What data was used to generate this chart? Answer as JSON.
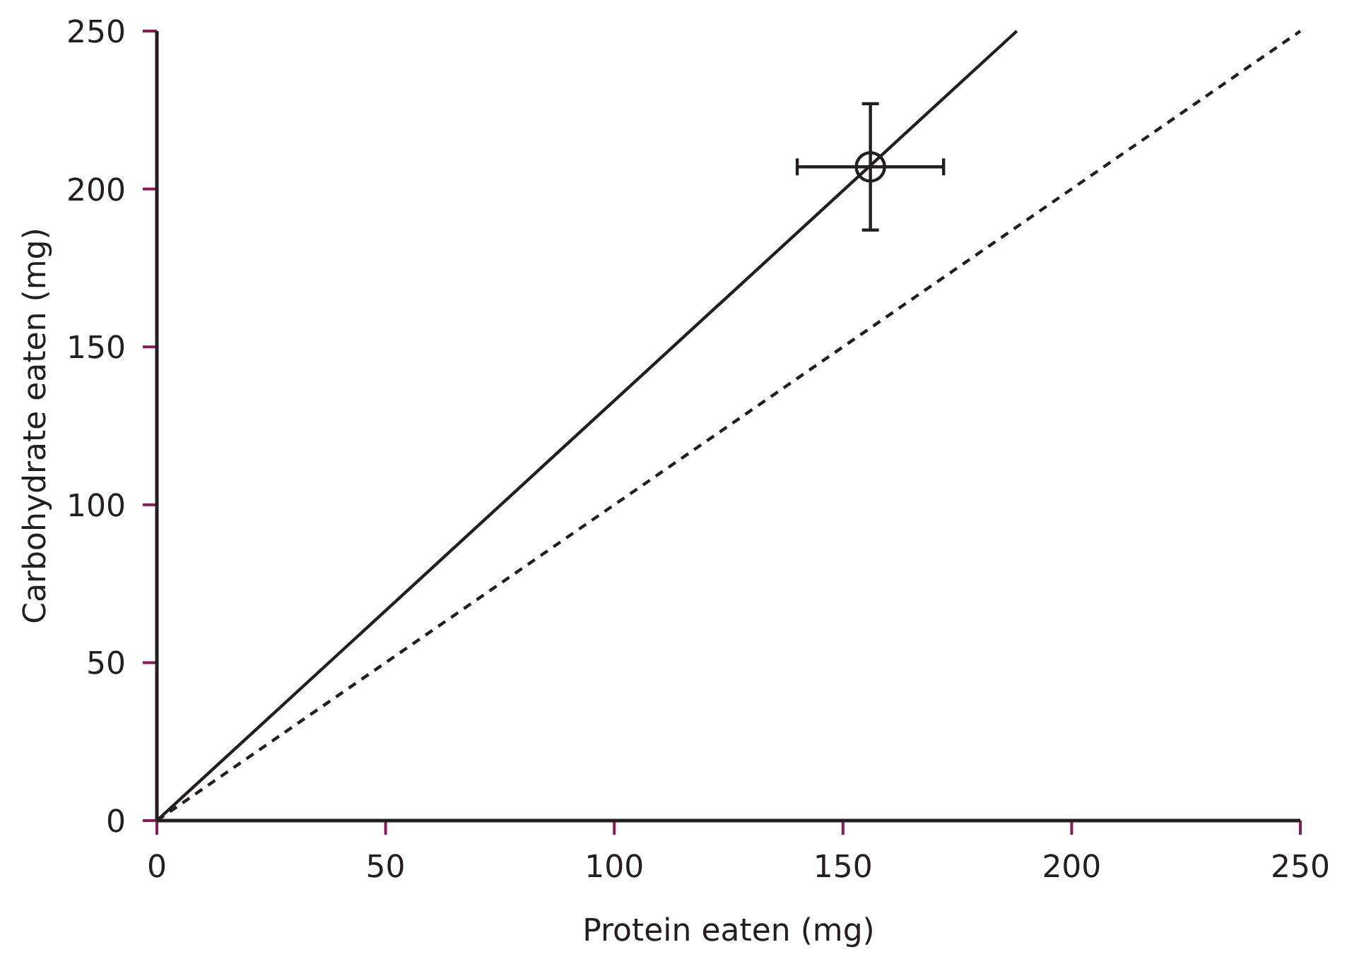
{
  "chart_data": {
    "type": "scatter",
    "xlabel": "Protein eaten (mg)",
    "ylabel": "Carbohydrate eaten (mg)",
    "xlim": [
      0,
      250
    ],
    "ylim": [
      0,
      250
    ],
    "xticks": [
      0,
      50,
      100,
      150,
      200,
      250
    ],
    "yticks": [
      0,
      50,
      100,
      150,
      200,
      250
    ],
    "grid": false,
    "series": [
      {
        "type": "line",
        "color": "#231f20",
        "x": [
          0,
          188
        ],
        "values": [
          0,
          250
        ],
        "line_style": "solid",
        "marker": "none"
      },
      {
        "type": "line",
        "color": "#231f20",
        "x": [
          0,
          250
        ],
        "values": [
          0,
          250
        ],
        "line_style": "dashed",
        "marker": "none"
      },
      {
        "color": "#231f20",
        "x": [
          156
        ],
        "values": [
          207
        ],
        "errors": [
          20
        ],
        "xerrors": [
          16
        ],
        "marker": "circle"
      }
    ]
  }
}
